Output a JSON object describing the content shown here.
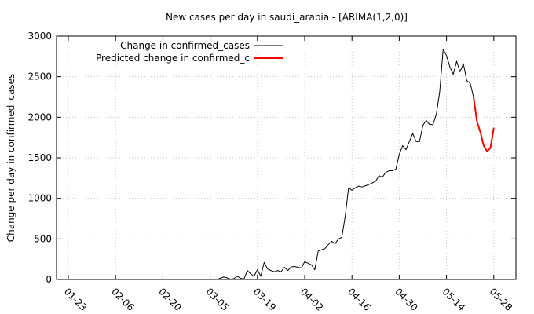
{
  "chart_data": {
    "type": "line",
    "title": "New cases per day in saudi_arabia -  [ARIMA(1,2,0)]",
    "xlabel": "",
    "ylabel": "Change per day in confirmed_cases",
    "ylim": [
      0,
      3000
    ],
    "yticks": [
      "0",
      "500",
      "1000",
      "1500",
      "2000",
      "2500",
      "3000"
    ],
    "xticks": [
      "01-23",
      "02-06",
      "02-20",
      "03-05",
      "03-19",
      "04-02",
      "04-16",
      "04-30",
      "05-14",
      "05-28"
    ],
    "grid": true,
    "legend_position": "top-left",
    "series": [
      {
        "name": "Change in confirmed_cases",
        "color": "#000000",
        "x_day_start": "03-02",
        "values": [
          0,
          0,
          0,
          0,
          0,
          0,
          15,
          30,
          20,
          5,
          10,
          40,
          15,
          5,
          110,
          70,
          40,
          120,
          40,
          210,
          130,
          110,
          95,
          110,
          95,
          150,
          110,
          155,
          160,
          150,
          140,
          220,
          200,
          180,
          120,
          350,
          365,
          380,
          430,
          470,
          440,
          500,
          520,
          780,
          1130,
          1100,
          1130,
          1150,
          1140,
          1155,
          1170,
          1190,
          1210,
          1280,
          1260,
          1320,
          1340,
          1340,
          1360,
          1540,
          1650,
          1600,
          1700,
          1800,
          1700,
          1700,
          1900,
          1960,
          1910,
          1910,
          2040,
          2320,
          2840,
          2760,
          2620,
          2530,
          2690,
          2560,
          2660,
          2450,
          2420,
          2250
        ]
      },
      {
        "name": "Predicted change in confirmed_c",
        "color": "#ff0000",
        "x_day_start": "05-22",
        "values": [
          2250,
          1950,
          1820,
          1650,
          1580,
          1620,
          1870
        ]
      }
    ]
  }
}
